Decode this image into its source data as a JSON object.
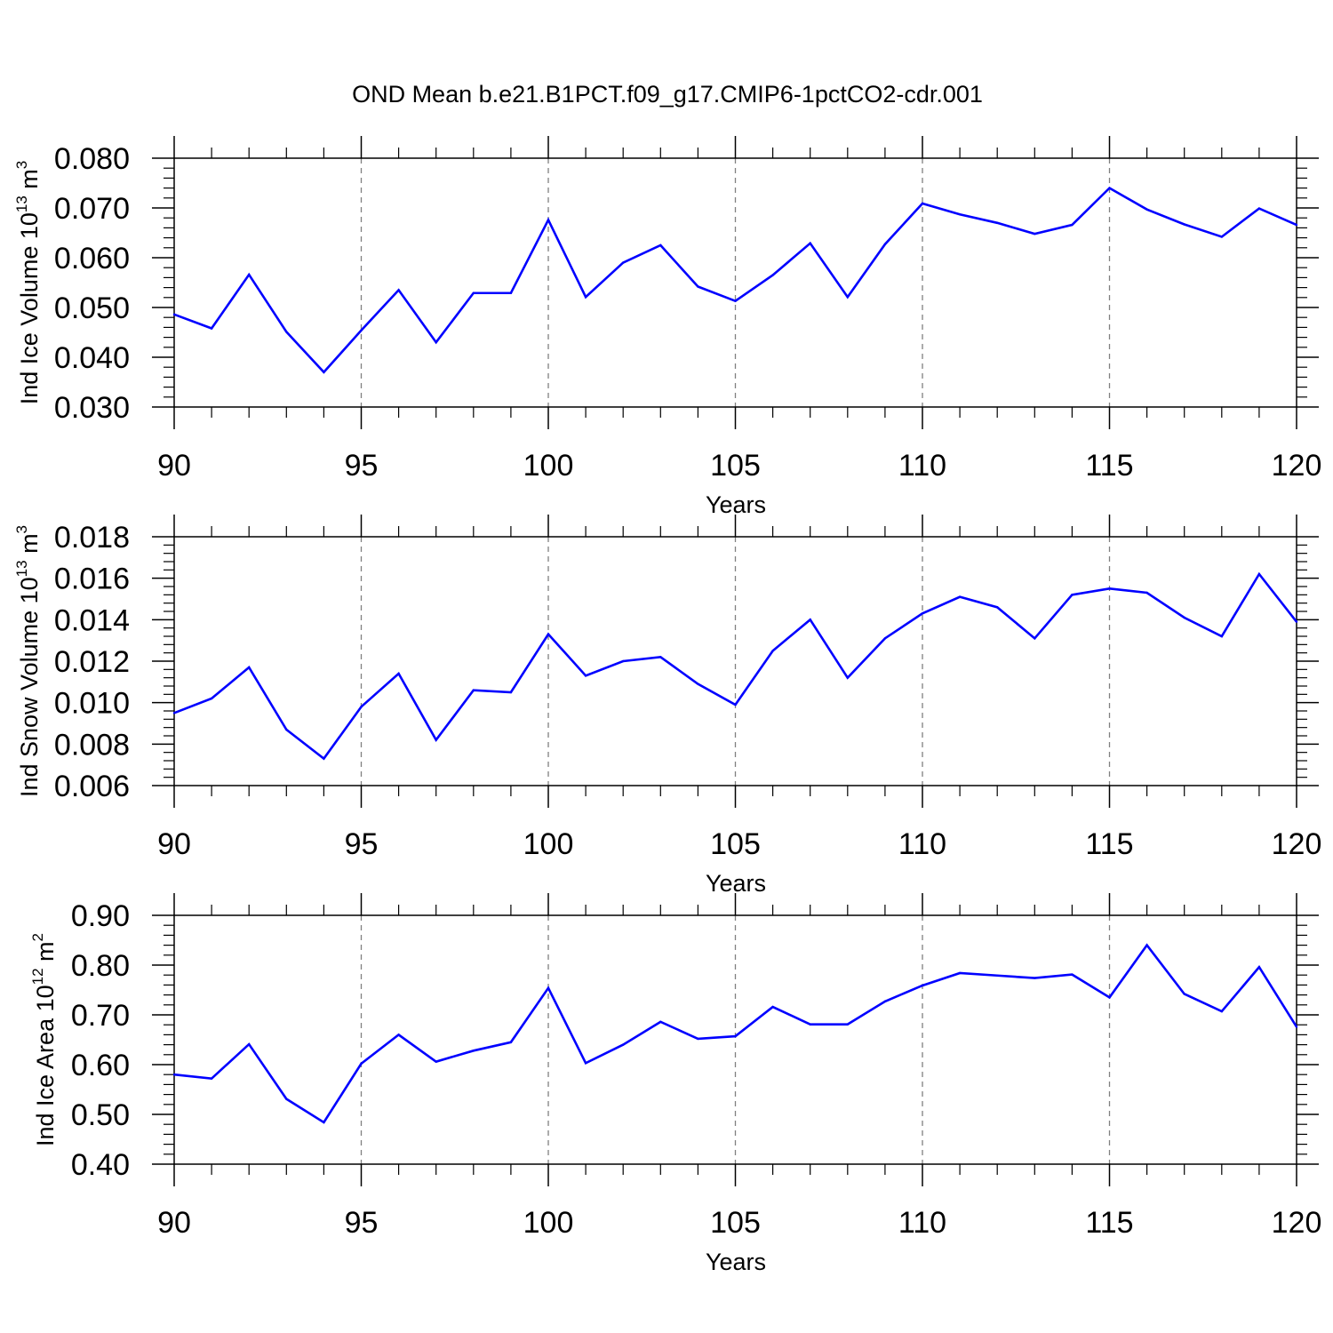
{
  "figure": {
    "title": "OND Mean b.e21.B1PCT.f09_g17.CMIP6-1pctCO2-cdr.001"
  },
  "colors": {
    "line": "#0000ff",
    "axis": "#000000",
    "grid": "#808080"
  },
  "chart_data": [
    {
      "type": "line",
      "ylabel": {
        "main": "Ind Ice Volume 10",
        "exp": "13",
        "unit": " m",
        "unit_exp": "3"
      },
      "xlabel": "Years",
      "xlim": [
        90,
        120
      ],
      "ylim": [
        0.03,
        0.08
      ],
      "yticks": [
        0.03,
        0.04,
        0.05,
        0.06,
        0.07,
        0.08
      ],
      "ytick_labels": [
        "0.030",
        "0.040",
        "0.050",
        "0.060",
        "0.070",
        "0.080"
      ],
      "xticks": [
        90,
        95,
        100,
        105,
        110,
        115,
        120
      ],
      "xtick_labels": [
        "90",
        "95",
        "100",
        "105",
        "110",
        "115",
        "120"
      ],
      "y_minor_step": 0.002,
      "grid": "vertical dashed at major x ticks",
      "x": [
        90,
        91,
        92,
        93,
        94,
        95,
        96,
        97,
        98,
        99,
        100,
        101,
        102,
        103,
        104,
        105,
        106,
        107,
        108,
        109,
        110,
        111,
        112,
        113,
        114,
        115,
        116,
        117,
        118,
        119,
        120
      ],
      "values": [
        0.0486,
        0.0458,
        0.0566,
        0.0451,
        0.037,
        0.0454,
        0.0535,
        0.043,
        0.0529,
        0.0529,
        0.0676,
        0.0521,
        0.059,
        0.0625,
        0.0542,
        0.0513,
        0.0565,
        0.0629,
        0.0521,
        0.0627,
        0.0709,
        0.0687,
        0.067,
        0.0648,
        0.0666,
        0.074,
        0.0697,
        0.0667,
        0.0642,
        0.0699,
        0.0666
      ]
    },
    {
      "type": "line",
      "ylabel": {
        "main": "Ind Snow Volume 10",
        "exp": "13",
        "unit": " m",
        "unit_exp": "3"
      },
      "xlabel": "Years",
      "xlim": [
        90,
        120
      ],
      "ylim": [
        0.006,
        0.018
      ],
      "yticks": [
        0.006,
        0.008,
        0.01,
        0.012,
        0.014,
        0.016,
        0.018
      ],
      "ytick_labels": [
        "0.006",
        "0.008",
        "0.010",
        "0.012",
        "0.014",
        "0.016",
        "0.018"
      ],
      "xticks": [
        90,
        95,
        100,
        105,
        110,
        115,
        120
      ],
      "xtick_labels": [
        "90",
        "95",
        "100",
        "105",
        "110",
        "115",
        "120"
      ],
      "y_minor_step": 0.0004,
      "grid": "vertical dashed at major x ticks",
      "x": [
        90,
        91,
        92,
        93,
        94,
        95,
        96,
        97,
        98,
        99,
        100,
        101,
        102,
        103,
        104,
        105,
        106,
        107,
        108,
        109,
        110,
        111,
        112,
        113,
        114,
        115,
        116,
        117,
        118,
        119,
        120
      ],
      "values": [
        0.0095,
        0.0102,
        0.0117,
        0.0087,
        0.0073,
        0.0098,
        0.0114,
        0.0082,
        0.0106,
        0.0105,
        0.0133,
        0.0113,
        0.012,
        0.0122,
        0.0109,
        0.0099,
        0.0125,
        0.014,
        0.0112,
        0.0131,
        0.0143,
        0.0151,
        0.0146,
        0.0131,
        0.0152,
        0.0155,
        0.0153,
        0.0141,
        0.0132,
        0.0162,
        0.0139
      ]
    },
    {
      "type": "line",
      "ylabel": {
        "main": "Ind Ice Area 10",
        "exp": "12",
        "unit": " m",
        "unit_exp": "2"
      },
      "xlabel": "Years",
      "xlim": [
        90,
        120
      ],
      "ylim": [
        0.4,
        0.9
      ],
      "yticks": [
        0.4,
        0.5,
        0.6,
        0.7,
        0.8,
        0.9
      ],
      "ytick_labels": [
        "0.40",
        "0.50",
        "0.60",
        "0.70",
        "0.80",
        "0.90"
      ],
      "xticks": [
        90,
        95,
        100,
        105,
        110,
        115,
        120
      ],
      "xtick_labels": [
        "90",
        "95",
        "100",
        "105",
        "110",
        "115",
        "120"
      ],
      "y_minor_step": 0.02,
      "grid": "vertical dashed at major x ticks",
      "x": [
        90,
        91,
        92,
        93,
        94,
        95,
        96,
        97,
        98,
        99,
        100,
        101,
        102,
        103,
        104,
        105,
        106,
        107,
        108,
        109,
        110,
        111,
        112,
        113,
        114,
        115,
        116,
        117,
        118,
        119,
        120
      ],
      "values": [
        0.58,
        0.572,
        0.641,
        0.531,
        0.484,
        0.602,
        0.66,
        0.606,
        0.628,
        0.645,
        0.754,
        0.603,
        0.64,
        0.686,
        0.652,
        0.657,
        0.716,
        0.681,
        0.681,
        0.727,
        0.759,
        0.784,
        0.779,
        0.774,
        0.781,
        0.735,
        0.84,
        0.742,
        0.707,
        0.796,
        0.676
      ]
    }
  ]
}
